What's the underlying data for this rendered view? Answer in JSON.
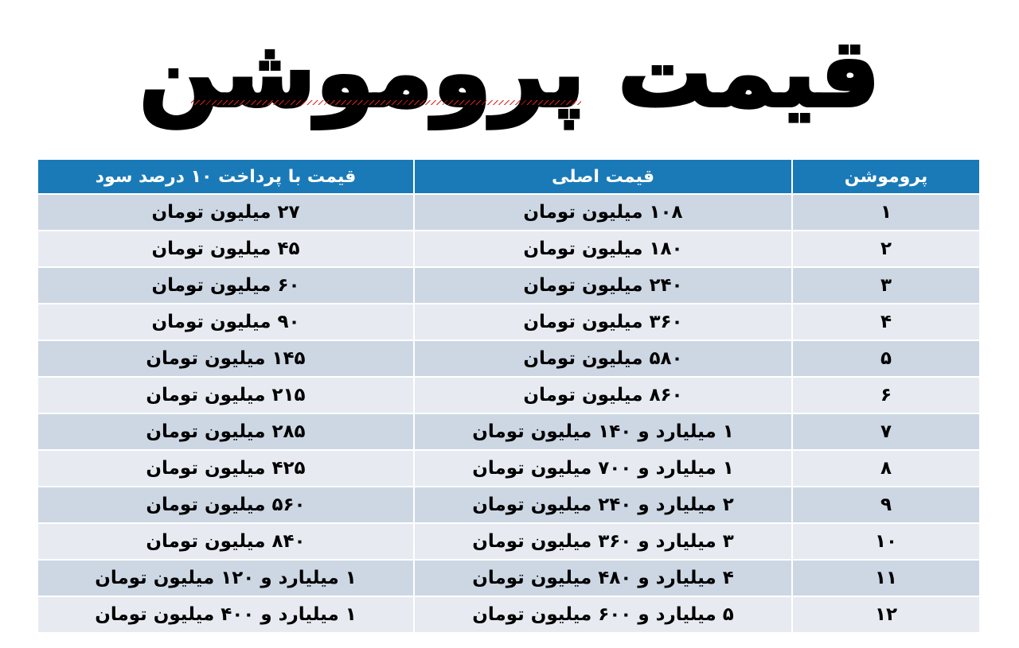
{
  "title": "قیمت پروموشن",
  "colors": {
    "header_bg": "#1a7ab8",
    "row_odd": "#cdd7e4",
    "row_even": "#e7ebf1"
  },
  "table": {
    "headers": [
      "پروموشن",
      "قیمت اصلی",
      "قیمت با پرداخت ۱۰ درصد سود"
    ],
    "rows": [
      [
        "۱",
        "۱۰۸ میلیون تومان",
        "۲۷ میلیون تومان"
      ],
      [
        "۲",
        "۱۸۰ میلیون تومان",
        "۴۵ میلیون تومان"
      ],
      [
        "۳",
        "۲۴۰ میلیون تومان",
        "۶۰ میلیون تومان"
      ],
      [
        "۴",
        "۳۶۰ میلیون تومان",
        "۹۰ میلیون تومان"
      ],
      [
        "۵",
        "۵۸۰ میلیون تومان",
        "۱۴۵ میلیون تومان"
      ],
      [
        "۶",
        "۸۶۰ میلیون تومان",
        "۲۱۵ میلیون تومان"
      ],
      [
        "۷",
        "۱ میلیارد و ۱۴۰ میلیون تومان",
        "۲۸۵ میلیون تومان"
      ],
      [
        "۸",
        "۱ میلیارد و ۷۰۰ میلیون تومان",
        "۴۲۵ میلیون تومان"
      ],
      [
        "۹",
        "۲ میلیارد و ۲۴۰ میلیون تومان",
        "۵۶۰ میلیون تومان"
      ],
      [
        "۱۰",
        "۳ میلیارد و ۳۶۰ میلیون تومان",
        "۸۴۰ میلیون تومان"
      ],
      [
        "۱۱",
        "۴ میلیارد و ۴۸۰ میلیون تومان",
        "۱ میلیارد و ۱۲۰ میلیون تومان"
      ],
      [
        "۱۲",
        "۵ میلیارد و ۶۰۰ میلیون تومان",
        "۱ میلیارد و ۴۰۰ میلیون تومان"
      ]
    ]
  }
}
